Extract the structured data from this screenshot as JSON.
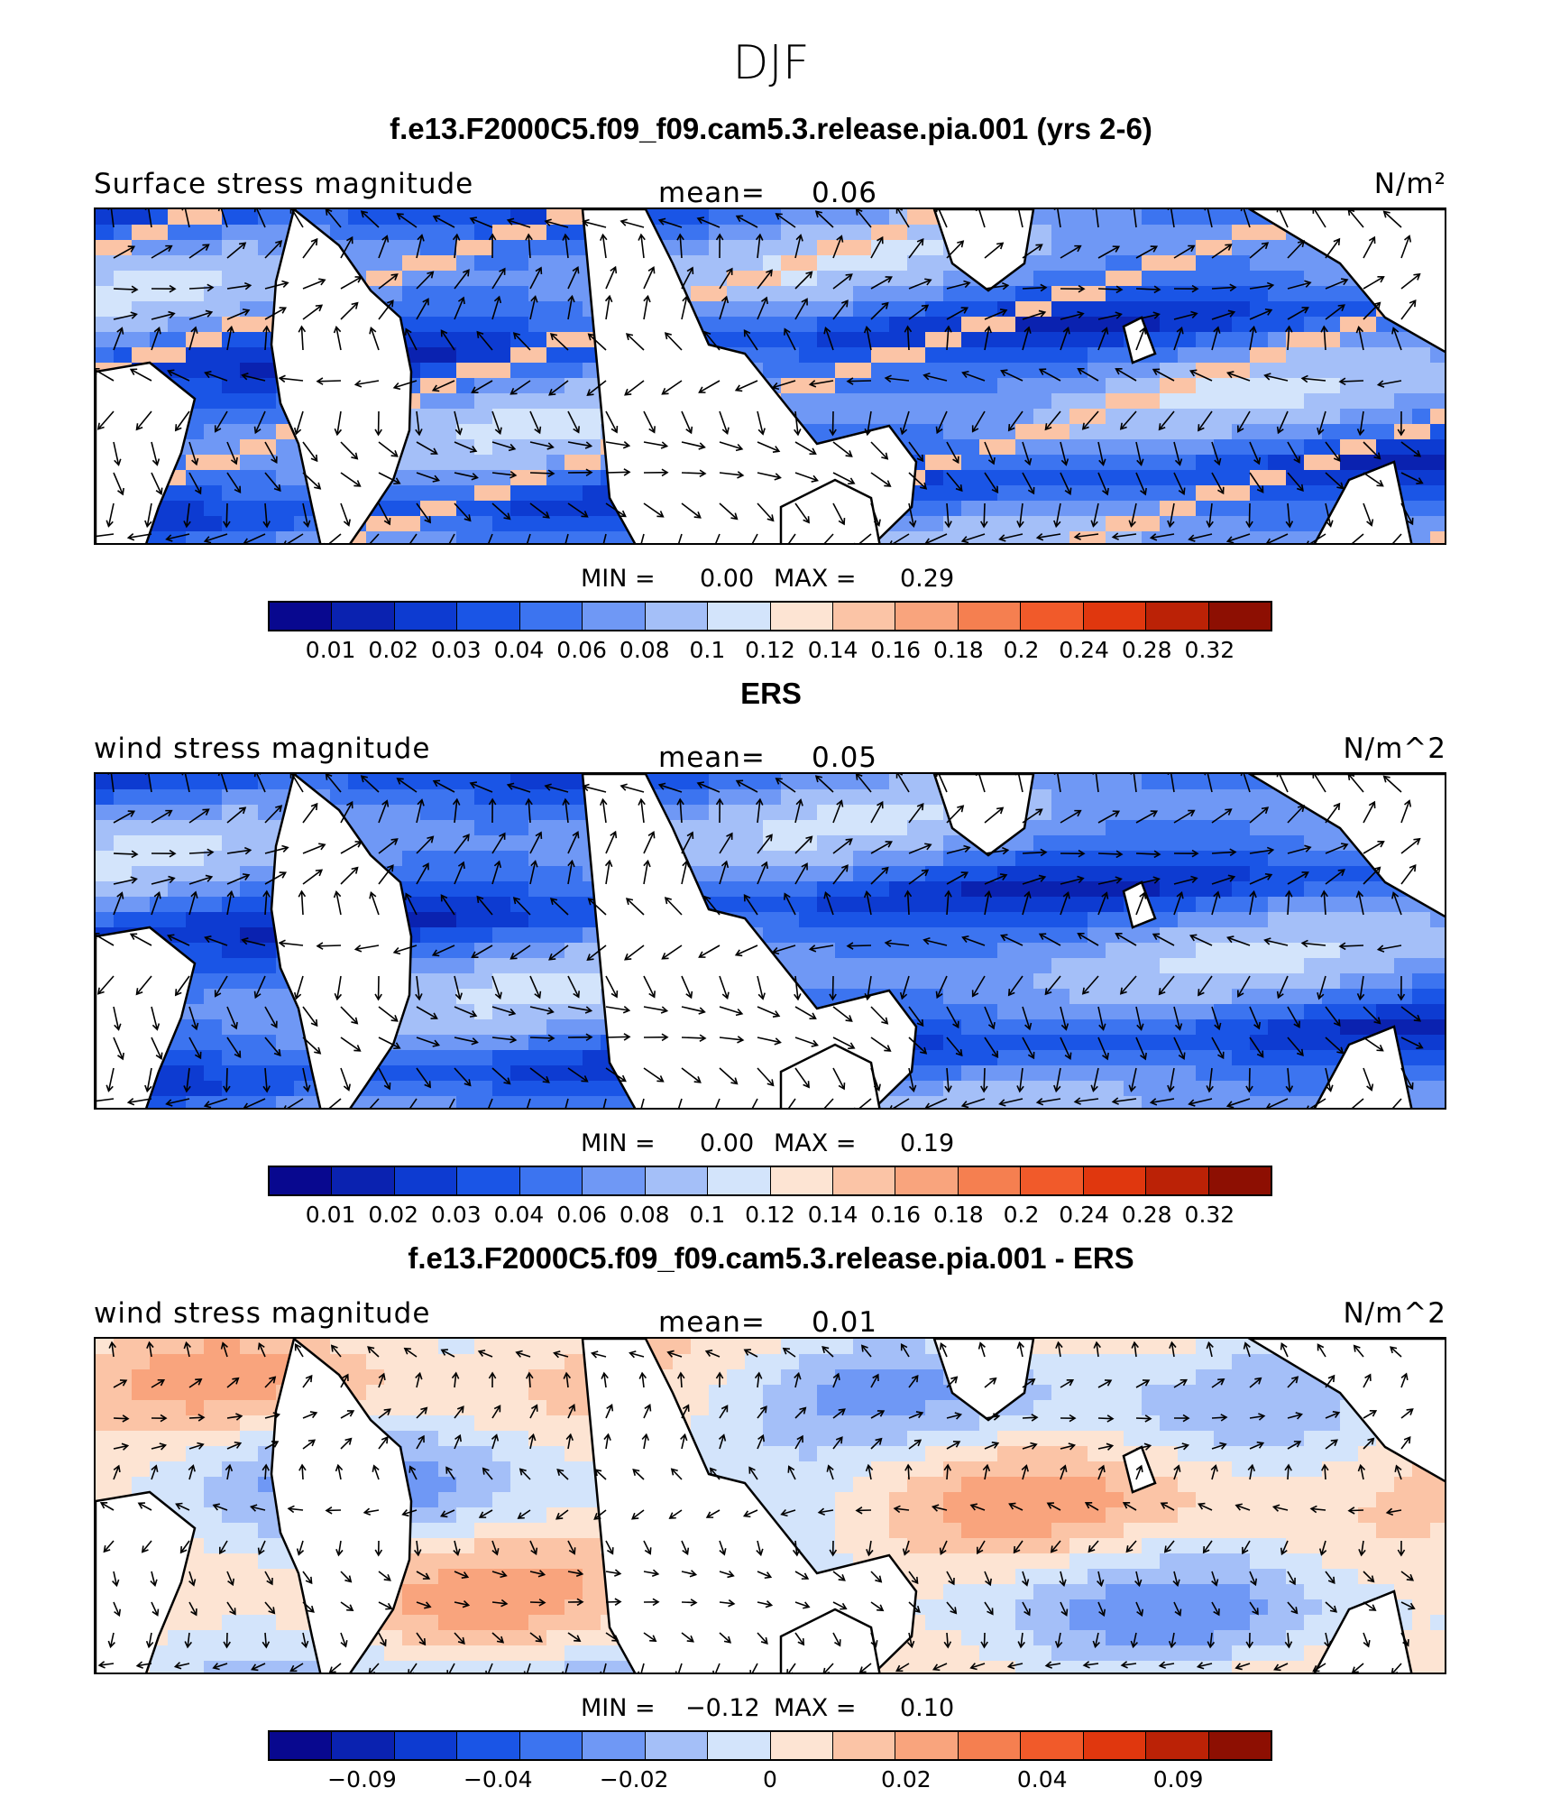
{
  "season_title": "DJF",
  "colors": [
    "#08088f",
    "#0a22b0",
    "#0d3bd1",
    "#1a55e6",
    "#3c74f0",
    "#6f98f5",
    "#a4bff8",
    "#d3e4fb",
    "#fde4d3",
    "#fbc4a6",
    "#f9a47d",
    "#f57f50",
    "#f15a2a",
    "#e0370e",
    "#bb2206",
    "#8d0f02"
  ],
  "panels": [
    {
      "title": "f.e13.F2000C5.f09_f09.cam5.3.release.pia.001 (yrs 2-6)",
      "left_label": "Surface stress magnitude",
      "mean_label": "mean=",
      "mean_value": "0.06",
      "units": "N/m²",
      "min_label": "MIN =",
      "min_value": "0.00",
      "max_label": "MAX =",
      "max_value": "0.29",
      "tick_labels": [
        "0.01",
        "0.02",
        "0.03",
        "0.04",
        "0.06",
        "0.08",
        "0.1",
        "0.12",
        "0.14",
        "0.16",
        "0.18",
        "0.2",
        "0.24",
        "0.28",
        "0.32"
      ],
      "field_type": "model"
    },
    {
      "title": "ERS",
      "left_label": "wind stress magnitude",
      "mean_label": "mean=",
      "mean_value": "0.05",
      "units": "N/m^2",
      "min_label": "MIN =",
      "min_value": "0.00",
      "max_label": "MAX =",
      "max_value": "0.19",
      "tick_labels": [
        "0.01",
        "0.02",
        "0.03",
        "0.04",
        "0.06",
        "0.08",
        "0.1",
        "0.12",
        "0.14",
        "0.16",
        "0.18",
        "0.2",
        "0.24",
        "0.28",
        "0.32"
      ],
      "field_type": "obs"
    },
    {
      "title": "f.e13.F2000C5.f09_f09.cam5.3.release.pia.001 - ERS",
      "left_label": "wind stress magnitude",
      "mean_label": "mean=",
      "mean_value": "0.01",
      "units": "N/m^2",
      "min_label": "MIN =",
      "min_value": "−0.12",
      "max_label": "MAX =",
      "max_value": "0.10",
      "tick_labels": [
        "−0.09",
        "",
        "−0.04",
        "",
        "−0.02",
        "",
        "0",
        "",
        "0.02",
        "",
        "0.04",
        "",
        "0.09"
      ],
      "field_type": "diff"
    }
  ],
  "chart_data": {
    "type": "heatmap",
    "title": "DJF",
    "subplots": [
      {
        "title": "f.e13.F2000C5.f09_f09.cam5.3.release.pia.001 (yrs 2-6)",
        "variable": "Surface stress magnitude",
        "units": "N/m²",
        "mean": 0.06,
        "min": 0.0,
        "max": 0.29,
        "color_levels": [
          0.01,
          0.02,
          0.03,
          0.04,
          0.06,
          0.08,
          0.1,
          0.12,
          0.14,
          0.16,
          0.18,
          0.2,
          0.24,
          0.28,
          0.32
        ]
      },
      {
        "title": "ERS",
        "variable": "wind stress magnitude",
        "units": "N/m^2",
        "mean": 0.05,
        "min": 0.0,
        "max": 0.19,
        "color_levels": [
          0.01,
          0.02,
          0.03,
          0.04,
          0.06,
          0.08,
          0.1,
          0.12,
          0.14,
          0.16,
          0.18,
          0.2,
          0.24,
          0.28,
          0.32
        ]
      },
      {
        "title": "f.e13.F2000C5.f09_f09.cam5.3.release.pia.001 - ERS",
        "variable": "wind stress magnitude",
        "units": "N/m^2",
        "mean": 0.01,
        "min": -0.12,
        "max": 0.1,
        "color_levels": [
          -0.09,
          -0.04,
          -0.02,
          0,
          0.02,
          0.04,
          0.09
        ]
      }
    ]
  }
}
